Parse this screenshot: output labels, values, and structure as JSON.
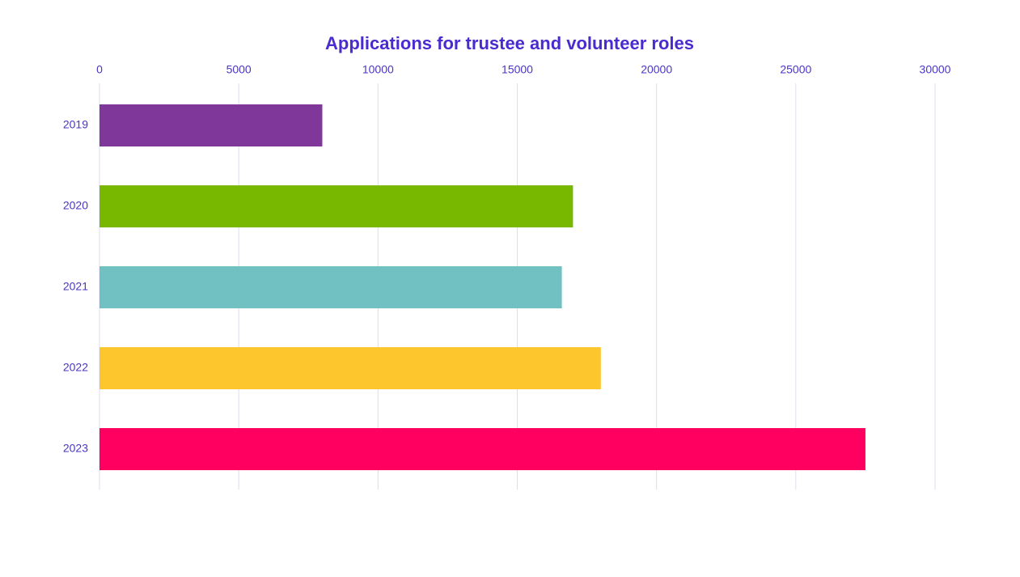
{
  "chart_data": {
    "type": "bar",
    "orientation": "horizontal",
    "title": "Applications for trustee and volunteer roles",
    "categories": [
      "2019",
      "2020",
      "2021",
      "2022",
      "2023"
    ],
    "values": [
      8000,
      17000,
      16600,
      18000,
      27500
    ],
    "colors": [
      "#7f3799",
      "#78b800",
      "#71c1c2",
      "#fec62d",
      "#ff0060"
    ],
    "xlim": [
      0,
      30000
    ],
    "xticks": [
      0,
      5000,
      10000,
      15000,
      20000,
      25000,
      30000
    ],
    "grid": true
  }
}
